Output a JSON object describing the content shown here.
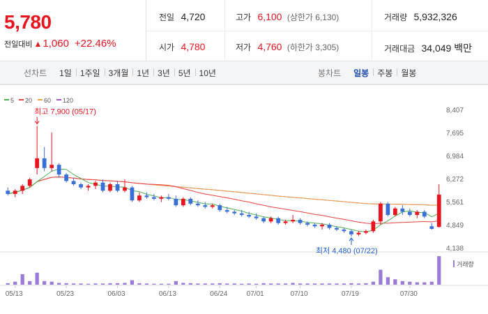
{
  "summary": {
    "price": "5,780",
    "change_label": "전일대비",
    "change_arrow": "▲",
    "change_value": "1,060",
    "change_pct": "+22.46%",
    "prev_close_label": "전일",
    "prev_close": "4,720",
    "open_label": "시가",
    "open": "4,780",
    "high_label": "고가",
    "high": "6,100",
    "upper_limit": "(상한가 6,130)",
    "low_label": "저가",
    "low": "4,760",
    "lower_limit": "(하한가 3,305)",
    "volume_label": "거래량",
    "volume": "5,932,326",
    "amount_label": "거래대금",
    "amount": "34,049 백만"
  },
  "toolbar": {
    "line_chart_label": "선차트",
    "periods": [
      "1일",
      "1주일",
      "3개월",
      "1년",
      "3년",
      "5년",
      "10년"
    ],
    "candle_chart_label": "봉차트",
    "candle_periods": [
      "일봉",
      "주봉",
      "월봉"
    ],
    "active_candle": "일봉"
  },
  "colors": {
    "up": "#e8141e",
    "down": "#3a6fd8",
    "ma5": "#4caf50",
    "ma20": "#e84040",
    "ma60": "#f0a040",
    "ma120": "#9b59b6",
    "volume": "#9b7bd8"
  },
  "chart_data": {
    "type": "candlestick",
    "legend": [
      "5",
      "20",
      "60",
      "120"
    ],
    "y_ticks": [
      "8,407",
      "7,695",
      "6,984",
      "6,272",
      "5,561",
      "4,849",
      "4,138"
    ],
    "ylim": [
      4138,
      8407
    ],
    "x_ticks": [
      "05/13",
      "05/23",
      "06/03",
      "06/13",
      "06/24",
      "07/01",
      "07/10",
      "07/19",
      "07/30"
    ],
    "volume_label": "거래량",
    "annotation_high": "최고 7,900 (05/17)",
    "annotation_low": "최저 4,480 (07/22)",
    "candles": [
      [
        5900,
        6000,
        5750,
        5800
      ],
      [
        5800,
        5950,
        5700,
        5900
      ],
      [
        5900,
        6100,
        5800,
        6050
      ],
      [
        6050,
        6300,
        6000,
        6250
      ],
      [
        6600,
        7900,
        6400,
        6900
      ],
      [
        6900,
        7250,
        6500,
        6600
      ],
      [
        6600,
        7700,
        6500,
        6700
      ],
      [
        6700,
        6750,
        6300,
        6400
      ],
      [
        6400,
        6450,
        6150,
        6200
      ],
      [
        6200,
        6300,
        6050,
        6100
      ],
      [
        6100,
        6150,
        5950,
        6000
      ],
      [
        6000,
        6100,
        5900,
        6050
      ],
      [
        6050,
        6200,
        5950,
        6150
      ],
      [
        6150,
        6250,
        5850,
        5900
      ],
      [
        5900,
        6150,
        5850,
        6100
      ],
      [
        6100,
        6200,
        5850,
        5900
      ],
      [
        5900,
        6250,
        5850,
        6000
      ],
      [
        6000,
        6050,
        5550,
        5600
      ],
      [
        5600,
        5850,
        5550,
        5750
      ],
      [
        5750,
        5850,
        5650,
        5700
      ],
      [
        5700,
        5800,
        5600,
        5650
      ],
      [
        5650,
        5750,
        5550,
        5700
      ],
      [
        5700,
        5800,
        5600,
        5650
      ],
      [
        5650,
        5750,
        5400,
        5450
      ],
      [
        5450,
        5700,
        5400,
        5650
      ],
      [
        5650,
        5700,
        5450,
        5500
      ],
      [
        5500,
        5600,
        5400,
        5450
      ],
      [
        5450,
        5550,
        5350,
        5400
      ],
      [
        5400,
        5500,
        5350,
        5450
      ],
      [
        5450,
        5500,
        5250,
        5300
      ],
      [
        5300,
        5400,
        5200,
        5250
      ],
      [
        5250,
        5300,
        5150,
        5200
      ],
      [
        5200,
        5300,
        5100,
        5150
      ],
      [
        5150,
        5250,
        5050,
        5100
      ],
      [
        5100,
        5200,
        5000,
        5050
      ],
      [
        5050,
        5100,
        4900,
        4950
      ],
      [
        4950,
        5100,
        4900,
        5050
      ],
      [
        5050,
        5100,
        4850,
        4900
      ],
      [
        4900,
        5000,
        4850,
        4950
      ],
      [
        4950,
        5150,
        4900,
        5000
      ],
      [
        5000,
        5050,
        4850,
        4900
      ],
      [
        4900,
        4950,
        4800,
        4850
      ],
      [
        4850,
        4900,
        4750,
        4800
      ],
      [
        4800,
        4900,
        4700,
        4850
      ],
      [
        4850,
        4900,
        4700,
        4750
      ],
      [
        4750,
        4800,
        4650,
        4700
      ],
      [
        4700,
        4750,
        4600,
        4650
      ],
      [
        4650,
        4700,
        4480,
        4550
      ],
      [
        4550,
        4650,
        4500,
        4600
      ],
      [
        4600,
        4700,
        4550,
        4650
      ],
      [
        4650,
        5000,
        4600,
        4950
      ],
      [
        4950,
        5550,
        4850,
        5500
      ],
      [
        5500,
        5550,
        5100,
        5150
      ],
      [
        5150,
        5400,
        5100,
        5350
      ],
      [
        5350,
        5450,
        5150,
        5250
      ],
      [
        5250,
        5350,
        5100,
        5150
      ],
      [
        5150,
        5300,
        5050,
        5250
      ],
      [
        5250,
        5300,
        5050,
        5100
      ],
      [
        4800,
        4900,
        4700,
        4720
      ],
      [
        4780,
        6100,
        4760,
        5780
      ]
    ],
    "volumes": [
      0.05,
      0.1,
      0.35,
      0.12,
      0.4,
      0.12,
      0.1,
      0.06,
      0.05,
      0.04,
      0.04,
      0.03,
      0.04,
      0.04,
      0.05,
      0.05,
      0.06,
      0.15,
      0.05,
      0.04,
      0.03,
      0.03,
      0.03,
      0.12,
      0.06,
      0.05,
      0.04,
      0.04,
      0.04,
      0.05,
      0.04,
      0.04,
      0.03,
      0.04,
      0.03,
      0.05,
      0.04,
      0.04,
      0.04,
      0.06,
      0.04,
      0.04,
      0.04,
      0.04,
      0.04,
      0.04,
      0.04,
      0.05,
      0.04,
      0.05,
      0.1,
      0.5,
      0.25,
      0.18,
      0.12,
      0.1,
      0.08,
      0.08,
      0.1,
      0.95
    ]
  }
}
